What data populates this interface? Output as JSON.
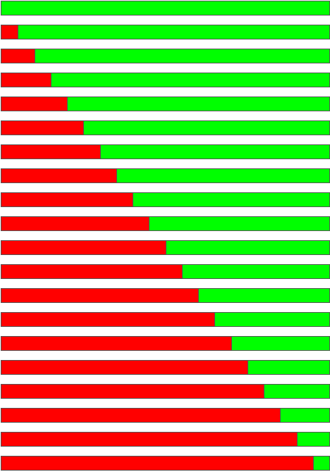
{
  "colors": {
    "filled": "#ff0000",
    "remaining": "#00ff00",
    "border": "#555555",
    "background": "#ffffff"
  },
  "bars": [
    {
      "fraction": 0.0
    },
    {
      "fraction": 0.05
    },
    {
      "fraction": 0.1
    },
    {
      "fraction": 0.15
    },
    {
      "fraction": 0.2
    },
    {
      "fraction": 0.25
    },
    {
      "fraction": 0.3
    },
    {
      "fraction": 0.35
    },
    {
      "fraction": 0.4
    },
    {
      "fraction": 0.45
    },
    {
      "fraction": 0.5
    },
    {
      "fraction": 0.55
    },
    {
      "fraction": 0.6
    },
    {
      "fraction": 0.65
    },
    {
      "fraction": 0.7
    },
    {
      "fraction": 0.75
    },
    {
      "fraction": 0.8
    },
    {
      "fraction": 0.85
    },
    {
      "fraction": 0.9
    },
    {
      "fraction": 0.95
    }
  ]
}
